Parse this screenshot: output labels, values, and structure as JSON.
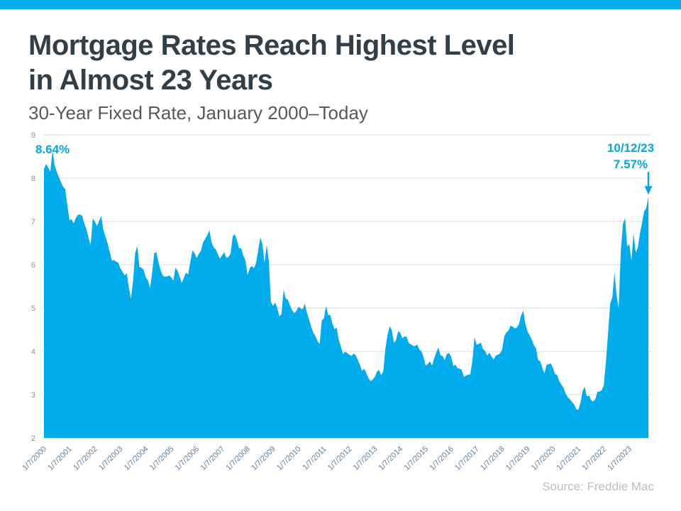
{
  "page": {
    "accent_color": "#00ACEC",
    "background_color": "#FFFFFF"
  },
  "header": {
    "title_line1": "Mortgage Rates Reach Highest Level",
    "title_line2": "in Almost 23 Years",
    "subtitle": "30-Year Fixed Rate, January 2000–Today"
  },
  "source_note": "Source: Freddie Mac",
  "chart_data": {
    "type": "area",
    "title": "30-Year Fixed Rate, January 2000–Today",
    "series_name": "30-Year Fixed Mortgage Rate (%)",
    "ylim": [
      2,
      9
    ],
    "y_ticks": [
      9,
      8,
      7,
      6,
      5,
      4,
      3,
      2
    ],
    "grid": "horizontal only",
    "legend": "none",
    "x_tick_labels": [
      "1/7/2000",
      "1/7/2001",
      "1/7/2002",
      "1/7/2003",
      "1/7/2004",
      "1/7/2005",
      "1/7/2006",
      "1/7/2007",
      "1/7/2008",
      "1/7/2009",
      "1/7/2010",
      "1/7/2011",
      "1/7/2012",
      "1/7/2013",
      "1/7/2014",
      "1/7/2015",
      "1/7/2016",
      "1/7/2017",
      "1/7/2018",
      "1/7/2019",
      "1/7/2020",
      "1/7/2021",
      "1/7/2022",
      "1/7/2023"
    ],
    "start_year": 2000,
    "values_by_year": [
      [
        8.21,
        8.33,
        8.24,
        8.15,
        8.64,
        8.29,
        8.15,
        8.03,
        7.91,
        7.8,
        7.75,
        7.38
      ],
      [
        7.03,
        7.05,
        6.95,
        7.08,
        7.15,
        7.16,
        7.13,
        6.95,
        6.82,
        6.62,
        6.45,
        7.07
      ],
      [
        7.0,
        6.89,
        7.01,
        7.13,
        6.81,
        6.65,
        6.49,
        6.29,
        6.09,
        6.11,
        6.07,
        6.05
      ],
      [
        5.92,
        5.84,
        5.75,
        5.81,
        5.48,
        5.21,
        5.63,
        6.26,
        6.44,
        5.95,
        5.93,
        5.88
      ],
      [
        5.71,
        5.64,
        5.45,
        5.83,
        6.27,
        6.29,
        6.06,
        5.87,
        5.75,
        5.72,
        5.73,
        5.75
      ],
      [
        5.71,
        5.63,
        5.93,
        5.86,
        5.72,
        5.58,
        5.7,
        5.82,
        5.77,
        6.07,
        6.33,
        6.27
      ],
      [
        6.15,
        6.25,
        6.32,
        6.51,
        6.6,
        6.68,
        6.8,
        6.52,
        6.4,
        6.36,
        6.24,
        6.14
      ],
      [
        6.22,
        6.29,
        6.16,
        6.18,
        6.26,
        6.66,
        6.7,
        6.57,
        6.38,
        6.38,
        6.21,
        6.1
      ],
      [
        5.76,
        5.92,
        5.97,
        5.92,
        6.04,
        6.32,
        6.63,
        6.48,
        6.04,
        6.46,
        6.09,
        5.14
      ],
      [
        5.05,
        5.13,
        5.0,
        4.81,
        4.86,
        5.42,
        5.22,
        5.19,
        5.06,
        4.95,
        4.88,
        4.93
      ],
      [
        5.03,
        4.99,
        4.97,
        5.1,
        4.89,
        4.74,
        4.56,
        4.43,
        4.35,
        4.23,
        4.17,
        4.71
      ],
      [
        4.76,
        5.05,
        4.84,
        4.84,
        4.64,
        4.51,
        4.55,
        4.27,
        4.11,
        3.94,
        3.99,
        3.96
      ],
      [
        3.92,
        3.89,
        3.95,
        3.91,
        3.8,
        3.68,
        3.55,
        3.6,
        3.5,
        3.38,
        3.31,
        3.35
      ],
      [
        3.41,
        3.53,
        3.57,
        3.45,
        3.54,
        4.07,
        4.37,
        4.58,
        4.49,
        4.19,
        4.26,
        4.46
      ],
      [
        4.43,
        4.3,
        4.34,
        4.34,
        4.19,
        4.16,
        4.13,
        4.12,
        4.16,
        4.04,
        4.0,
        3.86
      ],
      [
        3.67,
        3.71,
        3.77,
        3.67,
        3.84,
        3.98,
        4.09,
        3.91,
        3.89,
        3.8,
        3.94,
        3.96
      ],
      [
        3.87,
        3.66,
        3.69,
        3.61,
        3.6,
        3.57,
        3.41,
        3.44,
        3.46,
        3.47,
        3.77,
        4.32
      ],
      [
        4.15,
        4.17,
        4.2,
        4.05,
        4.01,
        3.9,
        3.97,
        3.88,
        3.81,
        3.9,
        3.92,
        3.95
      ],
      [
        4.03,
        4.33,
        4.44,
        4.47,
        4.59,
        4.57,
        4.53,
        4.55,
        4.63,
        4.83,
        4.94,
        4.64
      ],
      [
        4.46,
        4.37,
        4.27,
        4.14,
        4.07,
        3.8,
        3.77,
        3.62,
        3.49,
        3.69,
        3.7,
        3.72
      ],
      [
        3.62,
        3.47,
        3.45,
        3.31,
        3.23,
        3.16,
        3.02,
        2.94,
        2.89,
        2.83,
        2.77,
        2.66
      ],
      [
        2.65,
        2.81,
        3.08,
        3.18,
        2.96,
        2.98,
        2.87,
        2.84,
        2.9,
        3.07,
        3.07,
        3.1
      ],
      [
        3.22,
        3.76,
        4.42,
        5.1,
        5.25,
        5.81,
        5.3,
        4.99,
        6.29,
        6.94,
        7.08,
        6.42
      ],
      [
        6.48,
        6.09,
        6.73,
        6.28,
        6.39,
        6.71,
        6.96,
        7.23,
        7.31,
        7.57
      ]
    ],
    "annotations": {
      "start_peak_label": "8.64%",
      "latest_date": "10/12/23",
      "latest_value": "7.57%"
    },
    "colors": {
      "area": "#00ACEC",
      "grid": "#D9D9D9",
      "y_label": "#8A9096",
      "x_label": "#62809E",
      "annotation": "#00A6E8"
    }
  }
}
